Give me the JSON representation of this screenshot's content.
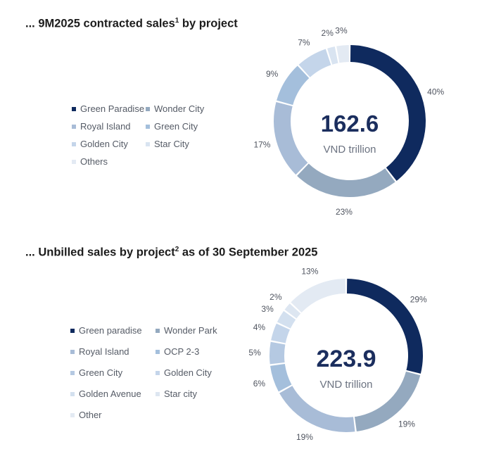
{
  "charts": [
    {
      "title_prefix": "... 9M2025 contracted sales",
      "title_sup": "1",
      "title_suffix": " by project",
      "center_value": "162.6",
      "center_unit": "VND trillion"
    },
    {
      "title_prefix": "... Unbilled sales by project",
      "title_sup": "2",
      "title_suffix": " as of 30 September 2025",
      "center_value": "223.9",
      "center_unit": "VND trillion"
    }
  ],
  "chart_data": [
    {
      "type": "pie",
      "title": "... 9M2025 contracted sales1 by project",
      "total": 162.6,
      "unit": "VND trillion",
      "legend_position": "left",
      "categories": [
        "Green Paradise",
        "Wonder City",
        "Royal Island",
        "Green City",
        "Golden City",
        "Star City",
        "Others"
      ],
      "values": [
        40,
        23,
        17,
        9,
        7,
        2,
        3
      ],
      "labels": [
        "40%",
        "23%",
        "17%",
        "9%",
        "7%",
        "2%",
        "3%"
      ],
      "colors": [
        "#0f2a5e",
        "#94a9bf",
        "#a8bcd7",
        "#a4bfdc",
        "#c4d5ea",
        "#d9e4f1",
        "#e3eaf3"
      ]
    },
    {
      "type": "pie",
      "title": "... Unbilled sales by project2 as of 30 September 2025",
      "total": 223.9,
      "unit": "VND trillion",
      "legend_position": "left",
      "categories": [
        "Green paradise",
        "Wonder Park",
        "Royal Island",
        "OCP 2-3",
        "Green City",
        "Golden City",
        "Golden Avenue",
        "Star city",
        "Other"
      ],
      "values": [
        29,
        19,
        19,
        6,
        5,
        4,
        3,
        2,
        13
      ],
      "labels": [
        "29%",
        "19%",
        "19%",
        "6%",
        "5%",
        "4%",
        "3%",
        "2%",
        "13%"
      ],
      "colors": [
        "#0f2a5e",
        "#94a9bf",
        "#a8bcd7",
        "#a4bfdc",
        "#b5c9e2",
        "#c4d5ea",
        "#d3e0ef",
        "#dde6f1",
        "#e3eaf3"
      ]
    }
  ]
}
